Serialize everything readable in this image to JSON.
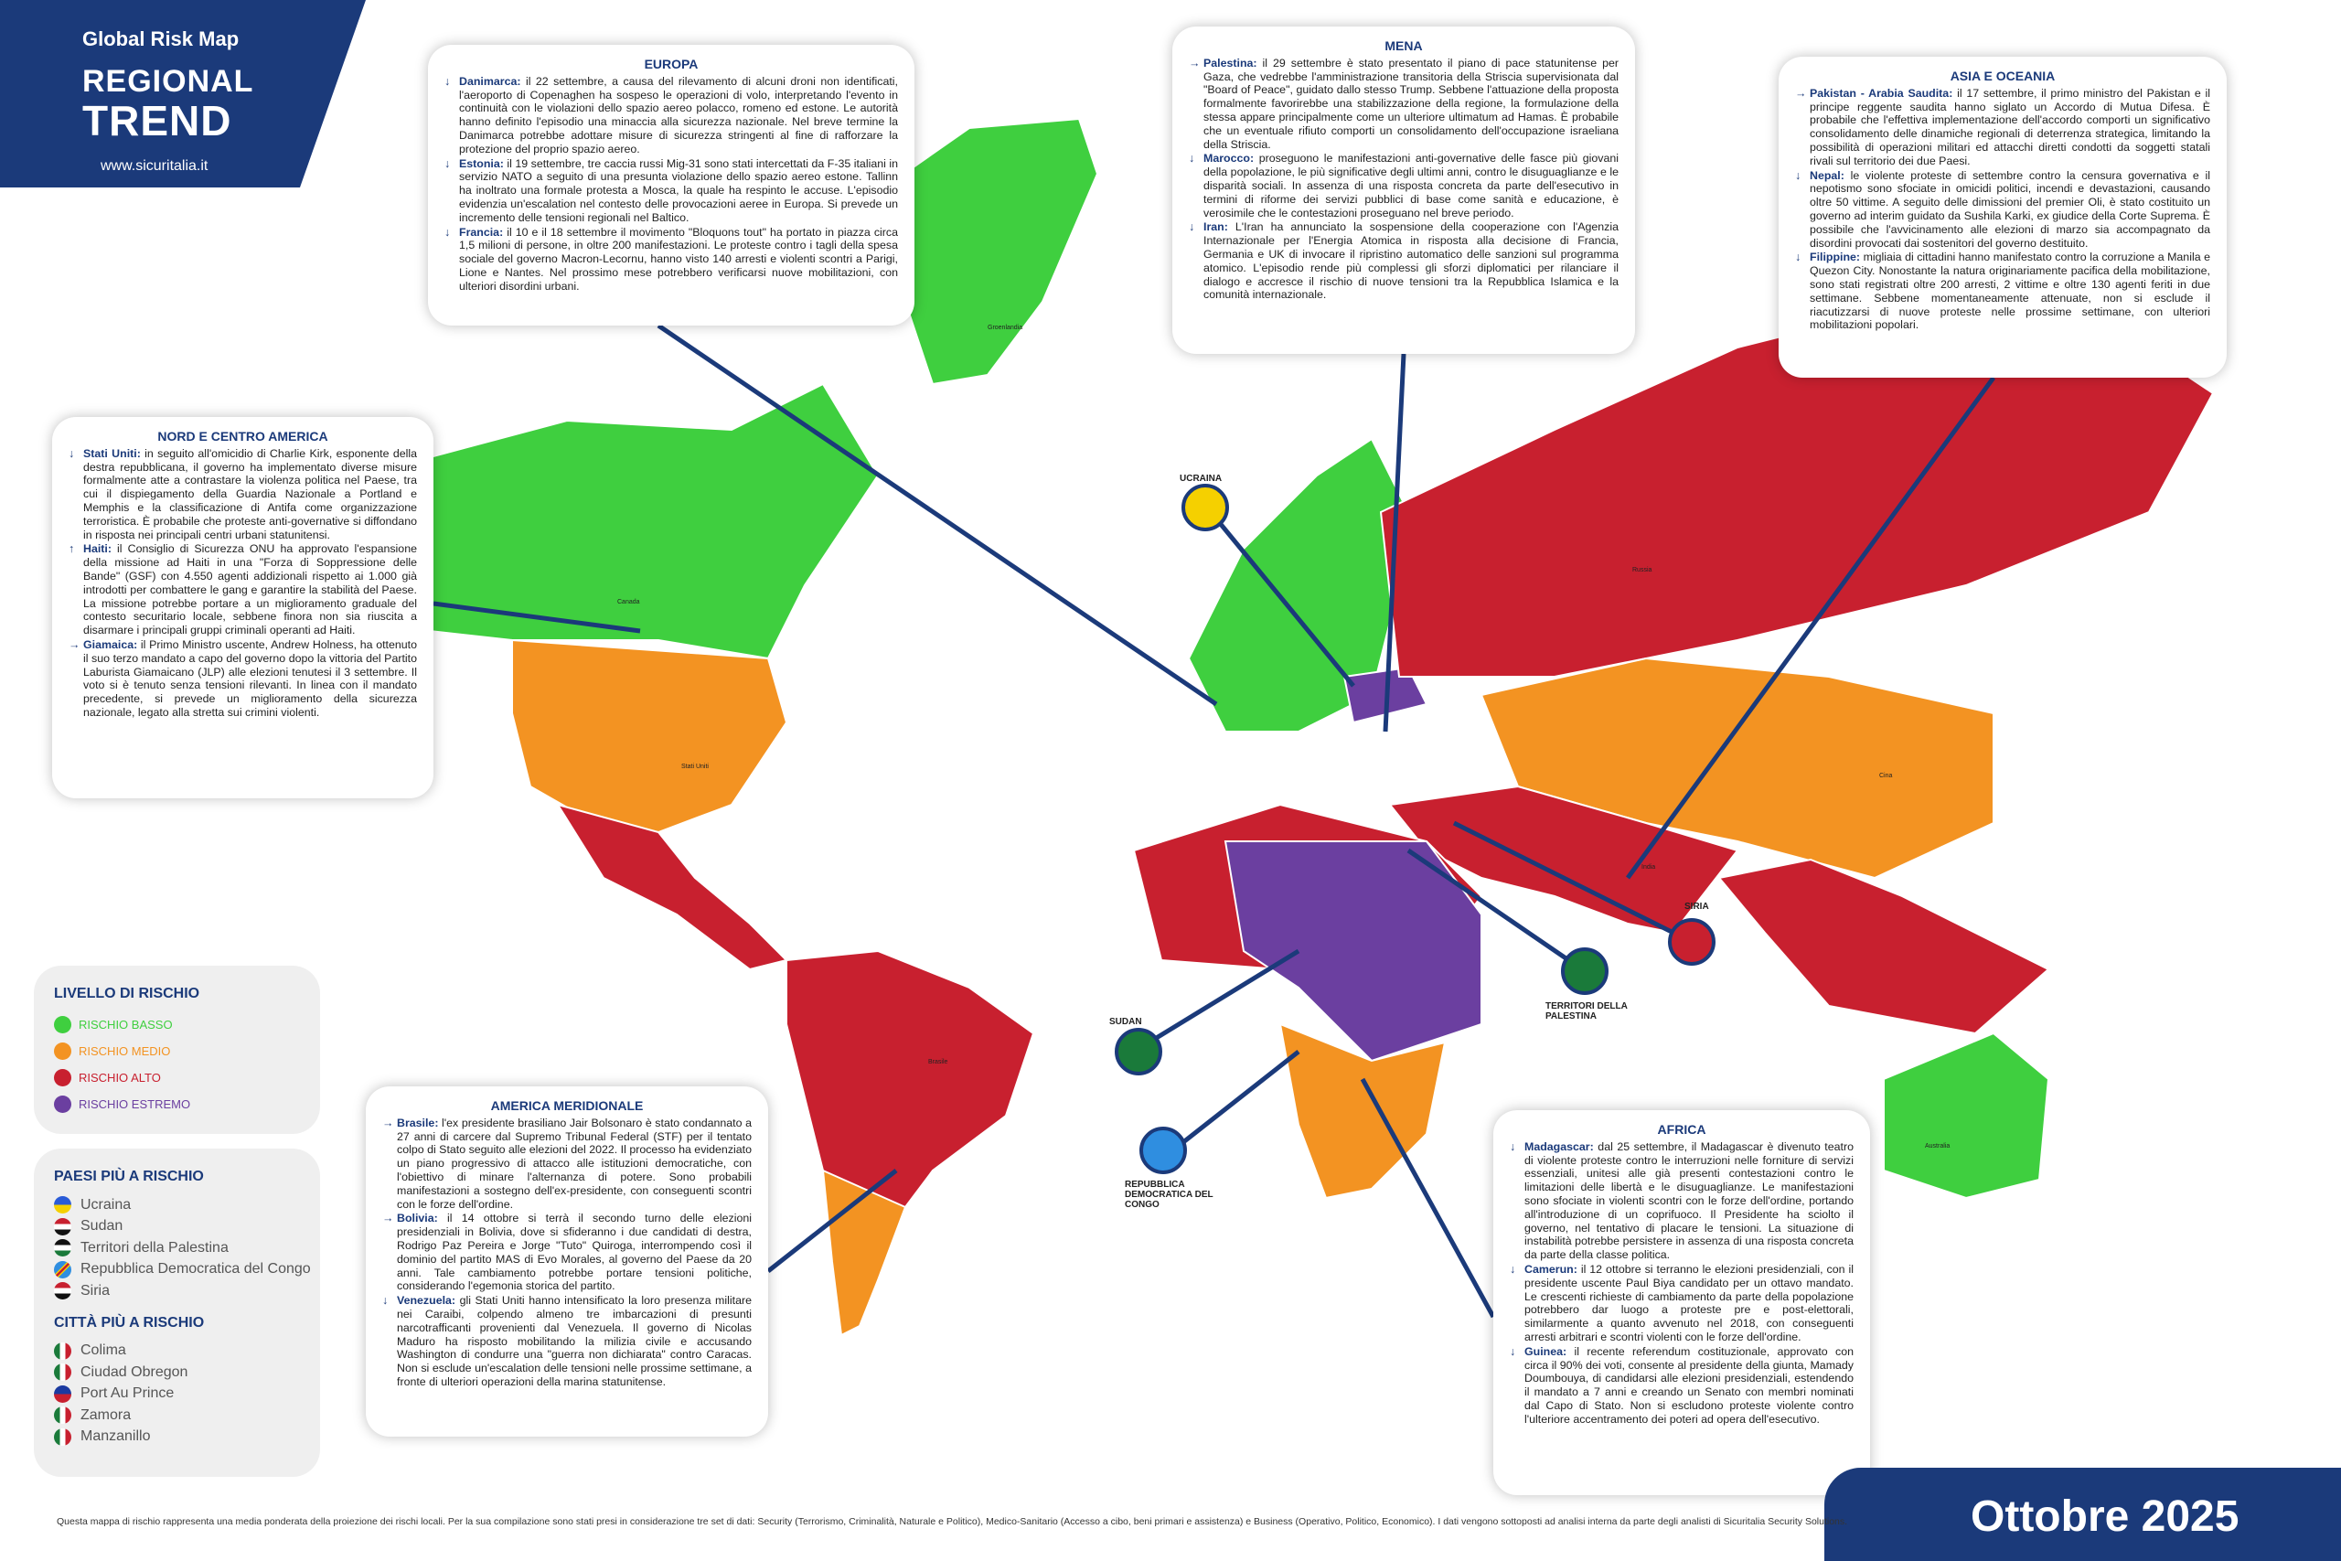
{
  "header": {
    "subtitle": "Global Risk Map",
    "title_line1": "REGIONAL",
    "title_line2": "TREND",
    "url": "www.sicuritalia.it"
  },
  "colors": {
    "basso": "#3fcf3f",
    "medio": "#f39322",
    "alto": "#c8202f",
    "estremo": "#6b3fa0",
    "brand": "#1b3a7a"
  },
  "boxes": {
    "europa": {
      "title": "EUROPA",
      "items": [
        {
          "dir": "down",
          "name": "Danimarca:",
          "text": " il 22 settembre, a causa del rilevamento di alcuni droni non identificati, l'aeroporto di Copenaghen ha sospeso le operazioni di volo, interpretando l'evento in continuità con le violazioni dello spazio aereo polacco, romeno ed estone. Le autorità hanno definito l'episodio una minaccia alla sicurezza nazionale. Nel breve termine la Danimarca potrebbe adottare misure di sicurezza stringenti al fine di rafforzare la protezione del proprio spazio aereo."
        },
        {
          "dir": "down",
          "name": "Estonia:",
          "text": " il 19 settembre, tre caccia russi Mig-31 sono stati intercettati da F-35 italiani in servizio NATO a seguito di una presunta violazione dello spazio aereo estone. Tallinn ha inoltrato una formale protesta a Mosca, la quale ha respinto le accuse. L'episodio evidenzia un'escalation nel contesto delle provocazioni aeree in Europa. Si prevede un incremento delle tensioni regionali nel Baltico."
        },
        {
          "dir": "down",
          "name": "Francia:",
          "text": " il 10 e il 18 settembre il movimento \"Bloquons tout\" ha portato in piazza circa 1,5 milioni di persone, in oltre 200 manifestazioni. Le proteste contro i tagli della spesa sociale del governo Macron-Lecornu, hanno visto 140 arresti e violenti scontri a Parigi, Lione e Nantes. Nel prossimo mese potrebbero verificarsi nuove mobilitazioni, con ulteriori disordini urbani."
        }
      ]
    },
    "mena": {
      "title": "MENA",
      "items": [
        {
          "dir": "right",
          "name": "Palestina:",
          "text": " il 29 settembre è stato presentato il piano di pace statunitense per Gaza, che vedrebbe l'amministrazione transitoria della Striscia supervisionata dal \"Board of Peace\", guidato dallo stesso Trump. Sebbene l'attuazione della proposta formalmente favorirebbe una stabilizzazione della regione, la formulazione della stessa appare principalmente come un ulteriore ultimatum ad Hamas. È probabile che un eventuale rifiuto comporti un consolidamento dell'occupazione israeliana della Striscia."
        },
        {
          "dir": "down",
          "name": "Marocco:",
          "text": " proseguono le manifestazioni anti-governative delle fasce più giovani della popolazione, le più significative degli ultimi anni, contro le disuguaglianze e le disparità sociali. In assenza di una risposta concreta da parte dell'esecutivo in termini di riforme dei servizi pubblici di base come sanità e educazione, è verosimile che le contestazioni proseguano nel breve periodo."
        },
        {
          "dir": "down",
          "name": "Iran:",
          "text": " L'Iran ha annunciato la sospensione della cooperazione con l'Agenzia Internazionale per l'Energia Atomica in risposta alla decisione di Francia, Germania e UK di invocare il ripristino automatico delle sanzioni sul programma atomico. L'episodio rende più complessi gli sforzi diplomatici per rilanciare il dialogo e accresce il rischio di nuove tensioni tra la Repubblica Islamica e la comunità internazionale."
        }
      ]
    },
    "asia": {
      "title": "ASIA E OCEANIA",
      "items": [
        {
          "dir": "right",
          "name": "Pakistan - Arabia Saudita:",
          "text": " il 17 settembre, il primo ministro del Pakistan e il principe reggente saudita hanno siglato un Accordo di Mutua Difesa. È probabile che l'effettiva implementazione dell'accordo comporti un significativo consolidamento delle dinamiche regionali di deterrenza strategica, limitando la possibilità di operazioni militari ed attacchi diretti condotti da soggetti statali rivali sul territorio dei due Paesi."
        },
        {
          "dir": "down",
          "name": "Nepal:",
          "text": " le violente proteste di settembre contro la censura governativa e il nepotismo sono sfociate in omicidi politici, incendi e devastazioni, causando oltre 50 vittime. A seguito delle dimissioni del premier Oli, è stato costituito un governo ad interim guidato da Sushila Karki, ex giudice della Corte Suprema. È possibile che l'avvicinamento alle elezioni di marzo sia accompagnato da disordini provocati dai sostenitori del governo destituito."
        },
        {
          "dir": "down",
          "name": "Filippine:",
          "text": " migliaia di cittadini hanno manifestato contro la corruzione a Manila e Quezon City. Nonostante la natura originariamente pacifica della mobilitazione, sono stati registrati oltre 200 arresti, 2 vittime e oltre 130 agenti feriti in due settimane. Sebbene momentaneamente attenuate, non si esclude il riacutizzarsi di nuove proteste nelle prossime settimane, con ulteriori mobilitazioni popolari."
        }
      ]
    },
    "nord_america": {
      "title": "NORD E CENTRO AMERICA",
      "items": [
        {
          "dir": "down",
          "name": "Stati Uniti:",
          "text": " in seguito all'omicidio di Charlie Kirk, esponente della destra repubblicana, il governo ha implementato diverse misure formalmente atte a contrastare la violenza politica nel Paese, tra cui il dispiegamento della Guardia Nazionale a Portland e Memphis e la classificazione di Antifa come organizzazione terroristica. È probabile che proteste anti-governative si diffondano in risposta nei principali centri urbani statunitensi."
        },
        {
          "dir": "up",
          "name": "Haiti:",
          "text": " il Consiglio di Sicurezza ONU ha approvato l'espansione della missione ad Haiti in una \"Forza di Soppressione delle Bande\" (GSF) con 4.550 agenti addizionali rispetto ai 1.000 già introdotti per combattere le gang e garantire la stabilità del Paese. La missione potrebbe portare a un miglioramento graduale del contesto securitario locale, sebbene finora non sia riuscita a disarmare i principali gruppi criminali operanti ad Haiti."
        },
        {
          "dir": "right",
          "name": "Giamaica:",
          "text": " il Primo Ministro uscente, Andrew Holness, ha ottenuto il suo terzo mandato a capo del governo dopo la vittoria del Partito Laburista Giamaicano (JLP) alle elezioni tenutesi il 3 settembre. Il voto si è tenuto senza tensioni rilevanti. In linea con il mandato precedente, si prevede un miglioramento della sicurezza nazionale, legato alla stretta sui crimini violenti."
        }
      ]
    },
    "sud_america": {
      "title": "AMERICA MERIDIONALE",
      "items": [
        {
          "dir": "right",
          "name": "Brasile:",
          "text": " l'ex presidente brasiliano Jair Bolsonaro è stato condannato a 27 anni di carcere dal Supremo Tribunal Federal (STF) per il tentato colpo di Stato seguito alle elezioni del 2022. Il processo ha evidenziato un piano progressivo di attacco alle istituzioni democratiche, con l'obiettivo di minare l'alternanza di potere. Sono probabili manifestazioni a sostegno dell'ex-presidente, con conseguenti scontri con le forze dell'ordine."
        },
        {
          "dir": "right",
          "name": "Bolivia:",
          "text": " il 14 ottobre si terrà il secondo turno delle elezioni presidenziali in Bolivia, dove si sfideranno i due candidati di destra, Rodrigo Paz Pereira e Jorge \"Tuto\" Quiroga, interrompendo così il dominio del partito MAS di Evo Morales, al governo del Paese da 20 anni. Tale cambiamento potrebbe portare tensioni politiche, considerando l'egemonia storica del partito."
        },
        {
          "dir": "down",
          "name": "Venezuela:",
          "text": " gli Stati Uniti hanno intensificato la loro presenza militare nei Caraibi, colpendo almeno tre imbarcazioni di presunti narcotrafficanti provenienti dal Venezuela. Il governo di Nicolas Maduro ha risposto mobilitando la milizia civile e accusando Washington di condurre una \"guerra non dichiarata\" contro Caracas. Non si esclude un'escalation delle tensioni nelle prossime settimane, a fronte di ulteriori operazioni della marina statunitense."
        }
      ]
    },
    "africa": {
      "title": "AFRICA",
      "items": [
        {
          "dir": "down",
          "name": "Madagascar:",
          "text": " dal 25 settembre, il Madagascar è divenuto teatro di violente proteste contro le interruzioni nelle forniture di servizi essenziali, unitesi alle già presenti contestazioni contro le limitazioni delle libertà e le disuguaglianze. Le manifestazioni sono sfociate in violenti scontri con le forze dell'ordine, portando all'introduzione di un coprifuoco. Il Presidente ha sciolto il governo, nel tentativo di placare le tensioni. La situazione di instabilità potrebbe persistere in assenza di una risposta concreta da parte della classe politica."
        },
        {
          "dir": "down",
          "name": "Camerun:",
          "text": " il 12 ottobre si terranno le elezioni presidenziali, con il presidente uscente Paul Biya candidato per un ottavo mandato. Le crescenti richieste di cambiamento da parte della popolazione potrebbero dar luogo a proteste pre e post-elettorali, similarmente a quanto avvenuto nel 2018, con conseguenti arresti arbitrari e scontri violenti con le forze dell'ordine."
        },
        {
          "dir": "down",
          "name": "Guinea:",
          "text": " il recente referendum costituzionale, approvato con circa il 90% dei voti, consente al presidente della giunta, Mamady Doumbouya, di candidarsi alle elezioni presidenziali, estendendo il mandato a 7 anni e creando un Senato con membri nominati dal Capo di Stato. Non si escludono proteste violente contro l'ulteriore accentramento dei poteri ad opera dell'esecutivo."
        }
      ]
    }
  },
  "legend": {
    "title": "LIVELLO DI RISCHIO",
    "levels": [
      {
        "label": "RISCHIO BASSO",
        "color": "#3fcf3f"
      },
      {
        "label": "RISCHIO MEDIO",
        "color": "#f39322"
      },
      {
        "label": "RISCHIO ALTO",
        "color": "#c8202f"
      },
      {
        "label": "RISCHIO ESTREMO",
        "color": "#6b3fa0"
      }
    ]
  },
  "countries": {
    "title": "PAESI PIÙ A RISCHIO",
    "items": [
      "Ucraina",
      "Sudan",
      "Territori della Palestina",
      "Repubblica Democratica del Congo",
      "Siria"
    ]
  },
  "cities": {
    "title": "CITTÀ PIÙ A RISCHIO",
    "items": [
      "Colima",
      "Ciudad Obregon",
      "Port Au Prince",
      "Zamora",
      "Manzanillo"
    ]
  },
  "map_labels": {
    "ucraina": "UCRAINA",
    "sudan": "SUDAN",
    "palestina": "TERRITORI DELLA PALESTINA",
    "congo": "REPUBBLICA DEMOCRATICA DEL CONGO",
    "siria": "SIRIA",
    "groenlandia": "Groenlandia",
    "canada": "Canada",
    "stati_uniti": "Stati Uniti",
    "russia": "Russia",
    "cina": "Cina",
    "brasile": "Brasile",
    "australia": "Australia",
    "india": "India"
  },
  "date": "Ottobre 2025",
  "footer": "Questa mappa di rischio rappresenta una media ponderata della proiezione dei rischi locali. Per la sua compilazione sono stati presi in considerazione tre set di dati: Security (Terrorismo, Criminalità, Naturale e Politico), Medico-Sanitario (Accesso a cibo, beni primari e assistenza) e Business (Operativo, Politico, Economico). I dati vengono sottoposti ad analisi interna da parte degli analisti di Sicuritalia Security Solutions."
}
